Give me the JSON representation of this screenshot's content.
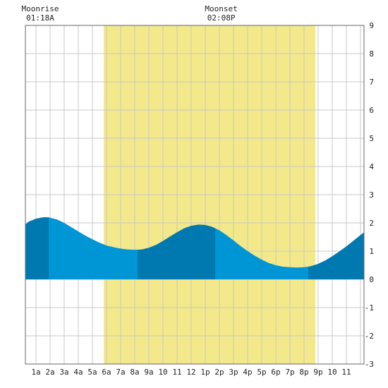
{
  "chart_data": {
    "type": "area",
    "title": "",
    "xlabel": "",
    "ylabel": "",
    "x_ticks": [
      "1a",
      "2a",
      "3a",
      "4a",
      "5a",
      "6a",
      "7a",
      "8a",
      "9a",
      "10",
      "11",
      "12",
      "1p",
      "2p",
      "3p",
      "4p",
      "5p",
      "6p",
      "7p",
      "8p",
      "9p",
      "10",
      "11"
    ],
    "y_ticks": [
      9,
      8,
      7,
      6,
      5,
      4,
      3,
      2,
      1,
      0,
      -1,
      -2,
      -3
    ],
    "xlim_hours": [
      0.25,
      24.25
    ],
    "ylim": [
      -3,
      9
    ],
    "grid": true,
    "daylight_hours": [
      5.8,
      20.8
    ],
    "moon_events": [
      {
        "name": "Moonrise",
        "time": "01:18A",
        "hour": 1.3
      },
      {
        "name": "Moonset",
        "time": "02:08P",
        "hour": 14.13
      }
    ],
    "tide_series": {
      "name": "",
      "x_hours": [
        0.25,
        0.5,
        1,
        1.5,
        1.9,
        2.5,
        3,
        3.5,
        4,
        4.5,
        5,
        5.5,
        6,
        6.5,
        7,
        7.5,
        8,
        8.2,
        8.5,
        9,
        9.5,
        10,
        10.5,
        11,
        11.5,
        12,
        12.5,
        13,
        13.5,
        14,
        14.5,
        15,
        15.5,
        16,
        16.5,
        17,
        17.5,
        18,
        18.5,
        19,
        19.5,
        20,
        20.3,
        20.5,
        21,
        21.5,
        22,
        22.5,
        23,
        23.5,
        24,
        24.25
      ],
      "y_ft": [
        1.95,
        2.05,
        2.15,
        2.2,
        2.2,
        2.12,
        2.0,
        1.85,
        1.7,
        1.55,
        1.42,
        1.3,
        1.2,
        1.14,
        1.09,
        1.06,
        1.05,
        1.05,
        1.06,
        1.12,
        1.22,
        1.36,
        1.52,
        1.67,
        1.81,
        1.9,
        1.94,
        1.93,
        1.86,
        1.74,
        1.57,
        1.38,
        1.18,
        1.0,
        0.84,
        0.7,
        0.58,
        0.5,
        0.45,
        0.43,
        0.42,
        0.43,
        0.45,
        0.47,
        0.55,
        0.67,
        0.82,
        0.99,
        1.17,
        1.37,
        1.57,
        1.67
      ]
    },
    "tide_segments": [
      {
        "from_hour": 0.25,
        "to_hour": 1.9,
        "shade": "dark"
      },
      {
        "from_hour": 1.9,
        "to_hour": 8.2,
        "shade": "light"
      },
      {
        "from_hour": 8.2,
        "to_hour": 13.7,
        "shade": "dark"
      },
      {
        "from_hour": 13.7,
        "to_hour": 20.3,
        "shade": "light"
      },
      {
        "from_hour": 20.3,
        "to_hour": 24.25,
        "shade": "dark"
      }
    ],
    "colors": {
      "daylight": "#f3e98a",
      "tide_light": "#0096d6",
      "tide_dark": "#0078b0",
      "grid": "#c8c8c8",
      "border": "#666666",
      "text": "#222222"
    }
  }
}
